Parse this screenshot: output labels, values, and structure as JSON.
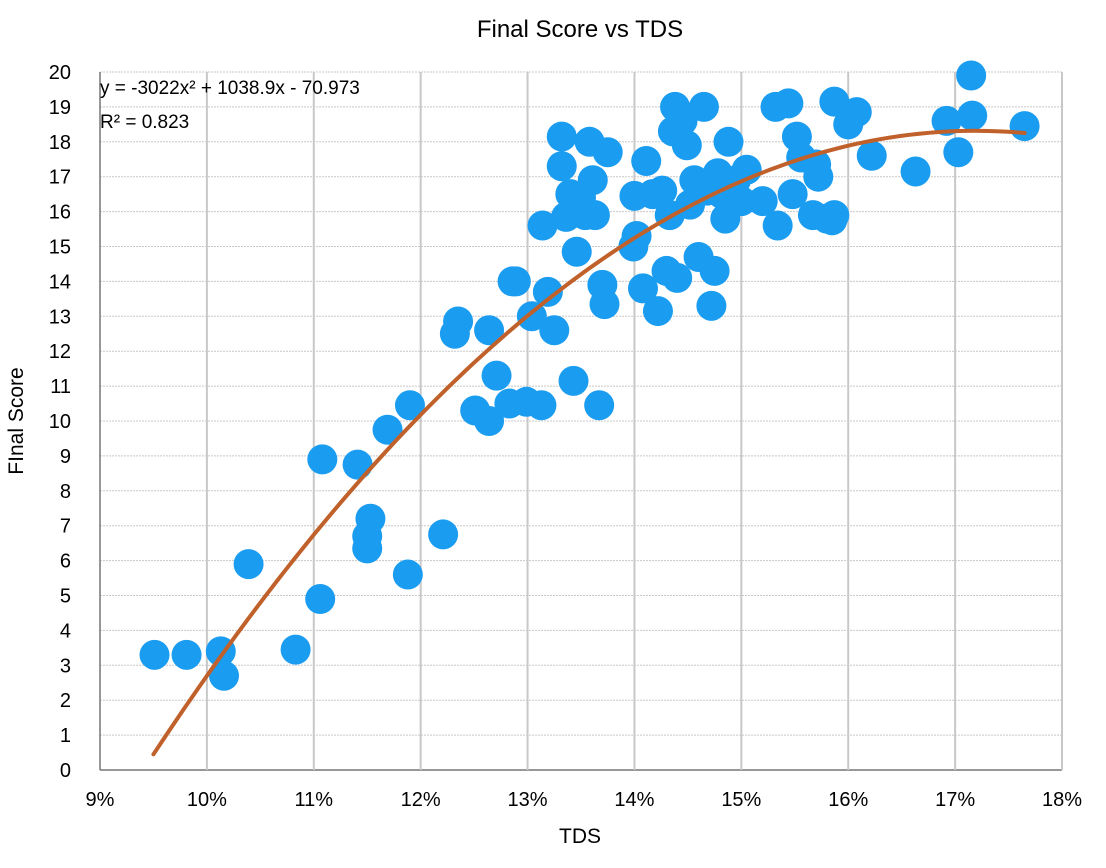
{
  "chart_data": {
    "type": "scatter",
    "title": "Final Score vs TDS",
    "xlabel": "TDS",
    "ylabel": "FInal Score",
    "xlim": [
      0.09,
      0.18
    ],
    "ylim": [
      0,
      20
    ],
    "x_ticks": [
      "9%",
      "10%",
      "11%",
      "12%",
      "13%",
      "14%",
      "15%",
      "16%",
      "17%",
      "18%"
    ],
    "y_ticks": [
      "0",
      "1",
      "2",
      "3",
      "4",
      "5",
      "6",
      "7",
      "8",
      "9",
      "10",
      "11",
      "12",
      "13",
      "14",
      "15",
      "16",
      "17",
      "18",
      "19",
      "20"
    ],
    "grid": true,
    "trendline": {
      "type": "polynomial",
      "coefficients": [
        -3022,
        1038.9,
        -70.973
      ],
      "x_range": [
        0.095,
        0.1765
      ],
      "color": "#c0602a",
      "equation_label": "y = -3022x² + 1038.9x - 70.973",
      "r2_label": "R² = 0.823"
    },
    "marker_color": "#1a9cf0",
    "series": [
      {
        "points": [
          [
            0.0951,
            3.3
          ],
          [
            0.0981,
            3.3
          ],
          [
            0.1013,
            3.4
          ],
          [
            0.1016,
            2.7
          ],
          [
            0.1039,
            5.9
          ],
          [
            0.1083,
            3.45
          ],
          [
            0.1106,
            4.9
          ],
          [
            0.1108,
            8.9
          ],
          [
            0.1141,
            8.75
          ],
          [
            0.115,
            6.7
          ],
          [
            0.115,
            6.35
          ],
          [
            0.1153,
            7.2
          ],
          [
            0.1169,
            9.75
          ],
          [
            0.1188,
            5.6
          ],
          [
            0.119,
            10.45
          ],
          [
            0.1221,
            6.75
          ],
          [
            0.1232,
            12.5
          ],
          [
            0.1235,
            12.85
          ],
          [
            0.1251,
            10.3
          ],
          [
            0.1264,
            12.6
          ],
          [
            0.1264,
            10.0
          ],
          [
            0.1271,
            11.3
          ],
          [
            0.1283,
            10.5
          ],
          [
            0.1286,
            14.0
          ],
          [
            0.1289,
            14.0
          ],
          [
            0.1299,
            10.55
          ],
          [
            0.1304,
            13.0
          ],
          [
            0.1313,
            10.45
          ],
          [
            0.1314,
            15.6
          ],
          [
            0.1319,
            13.7
          ],
          [
            0.1325,
            12.6
          ],
          [
            0.1332,
            18.15
          ],
          [
            0.1332,
            17.3
          ],
          [
            0.1336,
            15.85
          ],
          [
            0.134,
            16.5
          ],
          [
            0.1343,
            11.15
          ],
          [
            0.1346,
            14.85
          ],
          [
            0.135,
            16.4
          ],
          [
            0.1354,
            15.9
          ],
          [
            0.1358,
            18.0
          ],
          [
            0.1361,
            16.9
          ],
          [
            0.1363,
            15.9
          ],
          [
            0.1367,
            10.45
          ],
          [
            0.137,
            13.9
          ],
          [
            0.1372,
            13.35
          ],
          [
            0.1375,
            17.7
          ],
          [
            0.1399,
            15.0
          ],
          [
            0.14,
            16.45
          ],
          [
            0.1402,
            15.3
          ],
          [
            0.1408,
            13.8
          ],
          [
            0.1411,
            17.45
          ],
          [
            0.1417,
            16.5
          ],
          [
            0.1422,
            13.15
          ],
          [
            0.1426,
            16.6
          ],
          [
            0.143,
            14.3
          ],
          [
            0.1433,
            15.9
          ],
          [
            0.1436,
            18.3
          ],
          [
            0.1438,
            19.0
          ],
          [
            0.144,
            14.1
          ],
          [
            0.1445,
            18.6
          ],
          [
            0.1449,
            17.9
          ],
          [
            0.1452,
            16.2
          ],
          [
            0.1456,
            16.9
          ],
          [
            0.146,
            14.7
          ],
          [
            0.1465,
            19.0
          ],
          [
            0.1468,
            16.6
          ],
          [
            0.1472,
            13.3
          ],
          [
            0.1475,
            14.3
          ],
          [
            0.1478,
            17.1
          ],
          [
            0.1482,
            16.5
          ],
          [
            0.1485,
            15.8
          ],
          [
            0.1488,
            18.0
          ],
          [
            0.1495,
            16.9
          ],
          [
            0.15,
            16.3
          ],
          [
            0.1505,
            17.2
          ],
          [
            0.152,
            16.3
          ],
          [
            0.1532,
            19.0
          ],
          [
            0.1534,
            15.6
          ],
          [
            0.1544,
            19.1
          ],
          [
            0.1548,
            16.5
          ],
          [
            0.1552,
            18.15
          ],
          [
            0.1556,
            17.55
          ],
          [
            0.1567,
            15.9
          ],
          [
            0.157,
            17.35
          ],
          [
            0.1572,
            17.0
          ],
          [
            0.158,
            15.8
          ],
          [
            0.1585,
            15.75
          ],
          [
            0.1587,
            19.15
          ],
          [
            0.1587,
            15.9
          ],
          [
            0.16,
            18.5
          ],
          [
            0.1608,
            18.85
          ],
          [
            0.1622,
            17.6
          ],
          [
            0.1663,
            17.15
          ],
          [
            0.1692,
            18.6
          ],
          [
            0.1703,
            17.7
          ],
          [
            0.1715,
            19.9
          ],
          [
            0.1716,
            18.75
          ],
          [
            0.1765,
            18.45
          ]
        ]
      }
    ]
  }
}
